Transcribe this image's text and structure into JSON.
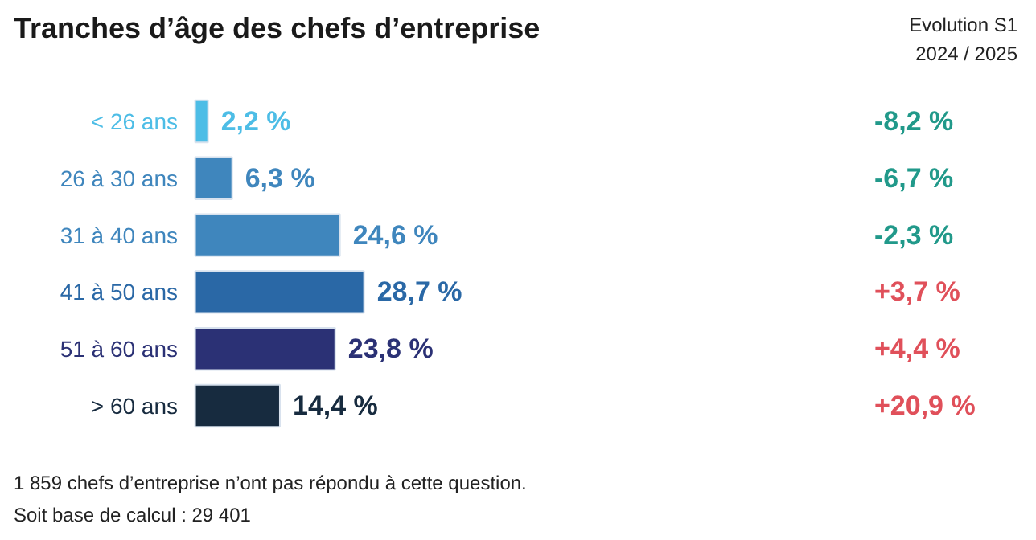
{
  "chart_data": {
    "type": "bar",
    "orientation": "horizontal",
    "title": "Tranches d’âge des chefs d’entreprise",
    "categories": [
      "< 26 ans",
      "26 à 30 ans",
      "31 à 40 ans",
      "41 à 50 ans",
      "51 à 60 ans",
      "> 60 ans"
    ],
    "values": [
      2.2,
      6.3,
      24.6,
      28.7,
      23.8,
      14.4
    ],
    "colors": [
      "#4dbde6",
      "#3f86bd",
      "#3f86bd",
      "#2a68a6",
      "#2b3175",
      "#172b3f"
    ],
    "value_labels": [
      "2,2 %",
      "6,3 %",
      "24,6 %",
      "28,7 %",
      "23,8 %",
      "14,4 %"
    ],
    "annotations": [
      "Evolution S1\n2024 / 2025",
      "-8,2 %",
      "-6,7 %",
      "-2,3 %",
      "+3,7 %",
      "+4,4 %",
      "+20,9 %",
      "1 859 chefs d’entreprise n’ont pas répondu à cette question.",
      "Soit base de calcul : 29 401"
    ]
  }
}
